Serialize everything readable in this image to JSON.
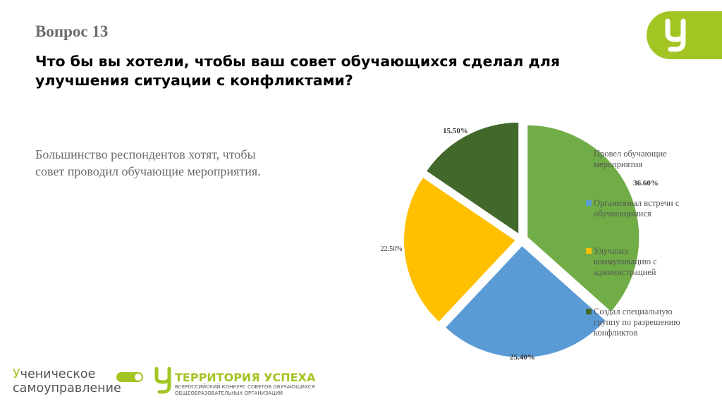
{
  "header": {
    "question_number": "Вопрос 13",
    "question_text": "Что бы вы хотели, чтобы ваш совет обучающихся сделал для улучшения ситуации с конфликтами?"
  },
  "summary": {
    "line1": "Большинство респондентов хотят, чтобы",
    "line2": "совет проводил обучающие мероприятия."
  },
  "chart_data": {
    "type": "pie",
    "slices": [
      {
        "label": "Провел обучающие мероприятия",
        "value": 36.6,
        "value_label": "36.60%",
        "color": "#70ad47"
      },
      {
        "label": "Организовал встречи с обучающимися",
        "value": 25.4,
        "value_label": "25.40%",
        "color": "#5b9bd5"
      },
      {
        "label": "Улучшил коммуникацию с администрацией",
        "value": 22.5,
        "value_label": "22.50%",
        "color": "#ffc000"
      },
      {
        "label": "Создал специальную группу по разрешению конфликтов",
        "value": 15.5,
        "value_label": "15.50%",
        "color": "#43682b"
      }
    ],
    "legend_position": "right",
    "legend": [
      [
        "Провел обучающие",
        "мероприятия"
      ],
      [
        "Организовал встречи с",
        "обучающимися"
      ],
      [
        "Улучшил",
        "коммуникацию с",
        "администрацией"
      ],
      [
        "Создал специальную",
        "группу по разрешению",
        "конфликтов"
      ]
    ]
  },
  "footer": {
    "logo1_line1_a": "У",
    "logo1_line1_b": "ченическое",
    "logo1_line2": "самоуправление",
    "logo2_title": "ТЕРРИТОРИЯ УСПЕХА",
    "logo2_sub1": "ВСЕРОССИЙСКИЙ КОНКУРС СОВЕТОВ ОБУЧАЮЩИХСЯ",
    "logo2_sub2": "ОБЩЕОБРАЗОВАТЕЛЬНЫХ ОРГАНИЗАЦИЙ"
  },
  "colors": {
    "brand": "#a3c523"
  }
}
